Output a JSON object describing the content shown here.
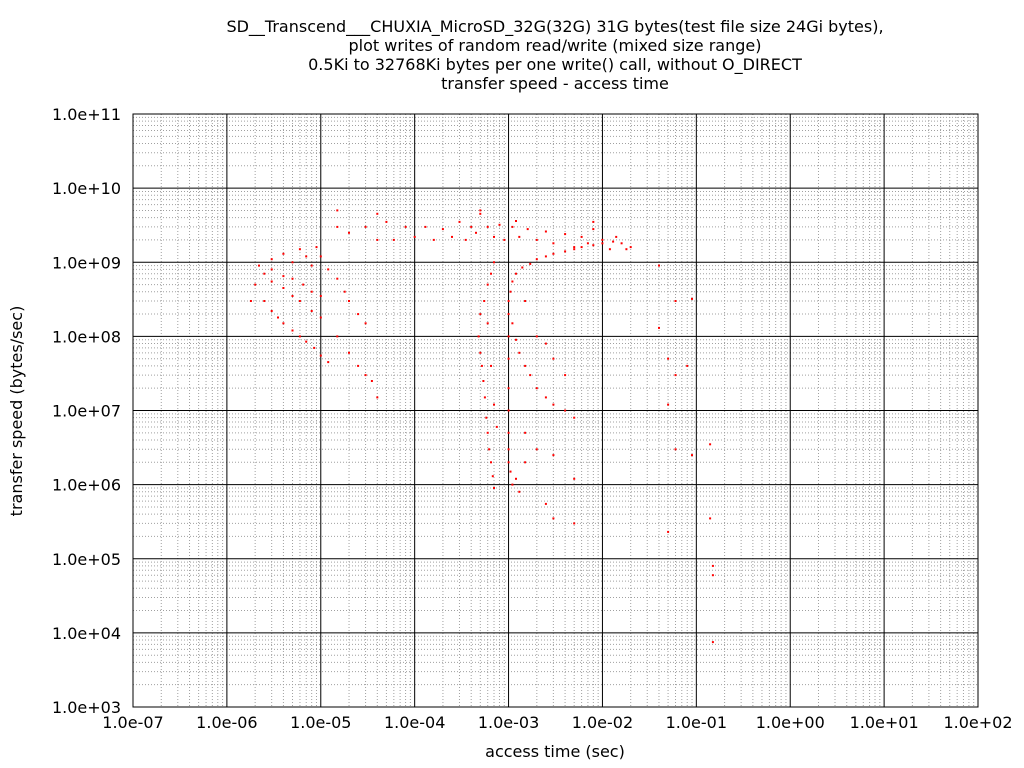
{
  "chart_data": {
    "type": "scatter",
    "title_lines": [
      "SD__Transcend___CHUXIA_MicroSD_32G(32G) 31G bytes(test file size 24Gi bytes),",
      "plot writes of random read/write (mixed size range)",
      "0.5Ki to 32768Ki bytes per one write() call, without O_DIRECT",
      "transfer speed - access time"
    ],
    "xlabel": "access time (sec)",
    "ylabel": "transfer speed (bytes/sec)",
    "xscale": "log",
    "yscale": "log",
    "xlim": [
      1e-07,
      100
    ],
    "ylim": [
      1000,
      100000000000.0
    ],
    "x_ticks": [
      {
        "value": 1e-07,
        "label": "1.0e-07"
      },
      {
        "value": 1e-06,
        "label": "1.0e-06"
      },
      {
        "value": 1e-05,
        "label": "1.0e-05"
      },
      {
        "value": 0.0001,
        "label": "1.0e-04"
      },
      {
        "value": 0.001,
        "label": "1.0e-03"
      },
      {
        "value": 0.01,
        "label": "1.0e-02"
      },
      {
        "value": 0.1,
        "label": "1.0e-01"
      },
      {
        "value": 1.0,
        "label": "1.0e+00"
      },
      {
        "value": 10.0,
        "label": "1.0e+01"
      },
      {
        "value": 100.0,
        "label": "1.0e+02"
      }
    ],
    "y_ticks": [
      {
        "value": 1000.0,
        "label": "1.0e+03"
      },
      {
        "value": 10000.0,
        "label": "1.0e+04"
      },
      {
        "value": 100000.0,
        "label": "1.0e+05"
      },
      {
        "value": 1000000.0,
        "label": "1.0e+06"
      },
      {
        "value": 10000000.0,
        "label": "1.0e+07"
      },
      {
        "value": 100000000.0,
        "label": "1.0e+08"
      },
      {
        "value": 1000000000.0,
        "label": "1.0e+09"
      },
      {
        "value": 10000000000.0,
        "label": "1.0e+10"
      },
      {
        "value": 100000000000.0,
        "label": "1.0e+11"
      }
    ],
    "grid": true,
    "minor_grid": true,
    "point_color": "#ff0000",
    "series": [
      {
        "points": [
          [
            1.8e-06,
            300000000.0
          ],
          [
            2e-06,
            500000000.0
          ],
          [
            2.5e-06,
            300000000.0
          ],
          [
            3e-06,
            220000000.0
          ],
          [
            3.5e-06,
            180000000.0
          ],
          [
            4e-06,
            150000000.0
          ],
          [
            5e-06,
            120000000.0
          ],
          [
            6e-06,
            100000000.0
          ],
          [
            7e-06,
            85000000.0
          ],
          [
            8.5e-06,
            70000000.0
          ],
          [
            1e-05,
            55000000.0
          ],
          [
            1.2e-05,
            45000000.0
          ],
          [
            2.5e-06,
            700000000.0
          ],
          [
            3e-06,
            550000000.0
          ],
          [
            4e-06,
            450000000.0
          ],
          [
            5e-06,
            350000000.0
          ],
          [
            6e-06,
            300000000.0
          ],
          [
            8e-06,
            220000000.0
          ],
          [
            1e-05,
            180000000.0
          ],
          [
            3e-06,
            800000000.0
          ],
          [
            4e-06,
            650000000.0
          ],
          [
            5e-06,
            600000000.0
          ],
          [
            6.5e-06,
            500000000.0
          ],
          [
            8e-06,
            400000000.0
          ],
          [
            1e-05,
            350000000.0
          ],
          [
            2.2e-06,
            900000000.0
          ],
          [
            3e-06,
            1100000000.0
          ],
          [
            4e-06,
            1300000000.0
          ],
          [
            5e-06,
            1000000000.0
          ],
          [
            6e-06,
            1500000000.0
          ],
          [
            7e-06,
            1200000000.0
          ],
          [
            8e-06,
            900000000.0
          ],
          [
            9e-06,
            1600000000.0
          ],
          [
            1e-05,
            1200000000.0
          ],
          [
            1.2e-05,
            800000000.0
          ],
          [
            1.5e-05,
            600000000.0
          ],
          [
            1.8e-05,
            400000000.0
          ],
          [
            2e-05,
            300000000.0
          ],
          [
            2.5e-05,
            200000000.0
          ],
          [
            3e-05,
            150000000.0
          ],
          [
            1.5e-05,
            100000000.0
          ],
          [
            2e-05,
            60000000.0
          ],
          [
            2.5e-05,
            40000000.0
          ],
          [
            3e-05,
            30000000.0
          ],
          [
            3.5e-05,
            25000000.0
          ],
          [
            4e-05,
            15000000.0
          ],
          [
            1.5e-05,
            3000000000.0
          ],
          [
            2e-05,
            2500000000.0
          ],
          [
            3e-05,
            3000000000.0
          ],
          [
            4e-05,
            2000000000.0
          ],
          [
            5e-05,
            3500000000.0
          ],
          [
            6e-05,
            2000000000.0
          ],
          [
            8e-05,
            3000000000.0
          ],
          [
            0.0001,
            2200000000.0
          ],
          [
            0.00013,
            3000000000.0
          ],
          [
            0.00016,
            2000000000.0
          ],
          [
            0.0002,
            2800000000.0
          ],
          [
            0.00025,
            2200000000.0
          ],
          [
            0.0003,
            3500000000.0
          ],
          [
            0.00035,
            2000000000.0
          ],
          [
            0.0004,
            3000000000.0
          ],
          [
            0.00045,
            2500000000.0
          ],
          [
            0.0005,
            4500000000.0
          ],
          [
            0.0006,
            3000000000.0
          ],
          [
            0.0007,
            2200000000.0
          ],
          [
            0.0008,
            3200000000.0
          ],
          [
            0.0009,
            2000000000.0
          ],
          [
            0.0011,
            3000000000.0
          ],
          [
            0.0013,
            2200000000.0
          ],
          [
            0.0016,
            2800000000.0
          ],
          [
            0.002,
            2000000000.0
          ],
          [
            0.0025,
            2600000000.0
          ],
          [
            0.003,
            1800000000.0
          ],
          [
            0.004,
            2400000000.0
          ],
          [
            0.005,
            1600000000.0
          ],
          [
            0.006,
            2200000000.0
          ],
          [
            0.007,
            1800000000.0
          ],
          [
            0.008,
            2800000000.0
          ],
          [
            0.01,
            2000000000.0
          ],
          [
            0.012,
            1500000000.0
          ],
          [
            0.014,
            2200000000.0
          ],
          [
            0.016,
            1800000000.0
          ],
          [
            0.018,
            1500000000.0
          ],
          [
            0.02,
            1600000000.0
          ],
          [
            1.5e-05,
            5000000000.0
          ],
          [
            4e-05,
            4500000000.0
          ],
          [
            0.0005,
            5000000000.0
          ],
          [
            0.0012,
            3600000000.0
          ],
          [
            0.008,
            3500000000.0
          ],
          [
            0.00048,
            100000000.0
          ],
          [
            0.0005,
            60000000.0
          ],
          [
            0.00052,
            40000000.0
          ],
          [
            0.00054,
            25000000.0
          ],
          [
            0.00056,
            15000000.0
          ],
          [
            0.00058,
            8000000.0
          ],
          [
            0.0006,
            5000000.0
          ],
          [
            0.00062,
            3000000.0
          ],
          [
            0.00065,
            2000000.0
          ],
          [
            0.00068,
            1300000.0
          ],
          [
            0.0007,
            900000.0
          ],
          [
            0.0005,
            200000000.0
          ],
          [
            0.00055,
            300000000.0
          ],
          [
            0.0006,
            500000000.0
          ],
          [
            0.00065,
            700000000.0
          ],
          [
            0.0007,
            1000000000.0
          ],
          [
            0.0006,
            150000000.0
          ],
          [
            0.00065,
            40000000.0
          ],
          [
            0.0007,
            12000000.0
          ],
          [
            0.00075,
            6000000.0
          ],
          [
            0.001,
            100000000.0
          ],
          [
            0.001,
            50000000.0
          ],
          [
            0.001,
            20000000.0
          ],
          [
            0.001,
            10000000.0
          ],
          [
            0.001,
            5000000.0
          ],
          [
            0.001,
            3000000.0
          ],
          [
            0.001,
            2000000.0
          ],
          [
            0.00105,
            1500000.0
          ],
          [
            0.0011,
            1000000.0
          ],
          [
            0.001,
            300000000.0
          ],
          [
            0.001,
            200000000.0
          ],
          [
            0.00105,
            400000000.0
          ],
          [
            0.0011,
            550000000.0
          ],
          [
            0.0012,
            700000000.0
          ],
          [
            0.0014,
            850000000.0
          ],
          [
            0.0017,
            950000000.0
          ],
          [
            0.002,
            1100000000.0
          ],
          [
            0.0025,
            1200000000.0
          ],
          [
            0.003,
            1300000000.0
          ],
          [
            0.004,
            1400000000.0
          ],
          [
            0.005,
            1500000000.0
          ],
          [
            0.006,
            1600000000.0
          ],
          [
            0.008,
            1700000000.0
          ],
          [
            0.01,
            1800000000.0
          ],
          [
            0.013,
            1900000000.0
          ],
          [
            0.0011,
            150000000.0
          ],
          [
            0.0012,
            90000000.0
          ],
          [
            0.0013,
            60000000.0
          ],
          [
            0.0015,
            40000000.0
          ],
          [
            0.0017,
            30000000.0
          ],
          [
            0.002,
            20000000.0
          ],
          [
            0.0025,
            15000000.0
          ],
          [
            0.003,
            12000000.0
          ],
          [
            0.004,
            10000000.0
          ],
          [
            0.005,
            8000000.0
          ],
          [
            0.0015,
            5000000.0
          ],
          [
            0.002,
            3000000.0
          ],
          [
            0.003,
            2500000.0
          ],
          [
            0.005,
            1200000.0
          ],
          [
            0.0015,
            2000000.0
          ],
          [
            0.0012,
            1200000.0
          ],
          [
            0.0025,
            550000.0
          ],
          [
            0.003,
            350000.0
          ],
          [
            0.005,
            300000.0
          ],
          [
            0.0013,
            800000.0
          ],
          [
            0.0015,
            300000000.0
          ],
          [
            0.002,
            100000000.0
          ],
          [
            0.0025,
            80000000.0
          ],
          [
            0.003,
            50000000.0
          ],
          [
            0.004,
            30000000.0
          ],
          [
            0.04,
            900000000.0
          ],
          [
            0.04,
            130000000.0
          ],
          [
            0.05,
            50000000.0
          ],
          [
            0.06,
            300000000.0
          ],
          [
            0.06,
            30000000.0
          ],
          [
            0.09,
            320000000.0
          ],
          [
            0.08,
            40000000.0
          ],
          [
            0.05,
            12000000.0
          ],
          [
            0.06,
            3000000.0
          ],
          [
            0.09,
            2500000.0
          ],
          [
            0.14,
            3500000.0
          ],
          [
            0.05,
            230000.0
          ],
          [
            0.14,
            350000.0
          ],
          [
            0.15,
            80000.0
          ],
          [
            0.15,
            60000.0
          ],
          [
            0.15,
            7500.0
          ]
        ]
      }
    ]
  }
}
